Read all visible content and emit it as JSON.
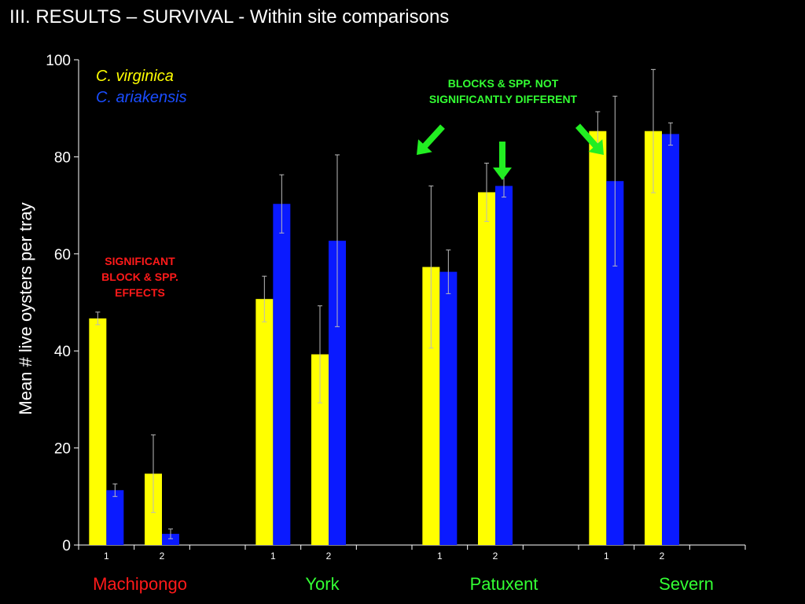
{
  "title": "III.  RESULTS –  SURVIVAL - Within site comparisons",
  "chart_data": {
    "type": "bar",
    "ylabel": "Mean # live oysters per tray",
    "xlabel": "",
    "ylim": [
      0,
      100
    ],
    "yticks": [
      0,
      20,
      40,
      60,
      80,
      100
    ],
    "grid": false,
    "legend_position": "top-left",
    "groups": [
      {
        "site": "Machipongo",
        "site_color": "#ff1a1a",
        "blocks": [
          "1",
          "2"
        ]
      },
      {
        "site": "York",
        "site_color": "#33ff33",
        "blocks": [
          "1",
          "2"
        ]
      },
      {
        "site": "Patuxent",
        "site_color": "#33ff33",
        "blocks": [
          "1",
          "2"
        ]
      },
      {
        "site": "Severn",
        "site_color": "#33ff33",
        "blocks": [
          "1",
          "2"
        ]
      }
    ],
    "series": [
      {
        "name": "C. virginica",
        "color": "#ffff00",
        "values": [
          46.7,
          14.7,
          50.7,
          39.3,
          57.3,
          72.7,
          85.3,
          85.3
        ],
        "errors": [
          1.3,
          8.0,
          4.7,
          10.0,
          16.7,
          6.0,
          4.0,
          12.7
        ]
      },
      {
        "name": "C. ariakensis",
        "color": "#0a1aff",
        "values": [
          11.3,
          2.3,
          70.3,
          62.7,
          56.3,
          74.0,
          75.0,
          84.7
        ],
        "errors": [
          1.3,
          1.0,
          6.0,
          17.7,
          4.5,
          2.3,
          17.5,
          2.3
        ]
      }
    ],
    "annotations": [
      {
        "text": "SIGNIFICANT BLOCK & SPP. EFFECTS",
        "color": "#ff1a1a"
      },
      {
        "text": "BLOCKS & SPP. NOT SIGNIFICANTLY DIFFERENT",
        "color": "#33ff33"
      }
    ]
  }
}
